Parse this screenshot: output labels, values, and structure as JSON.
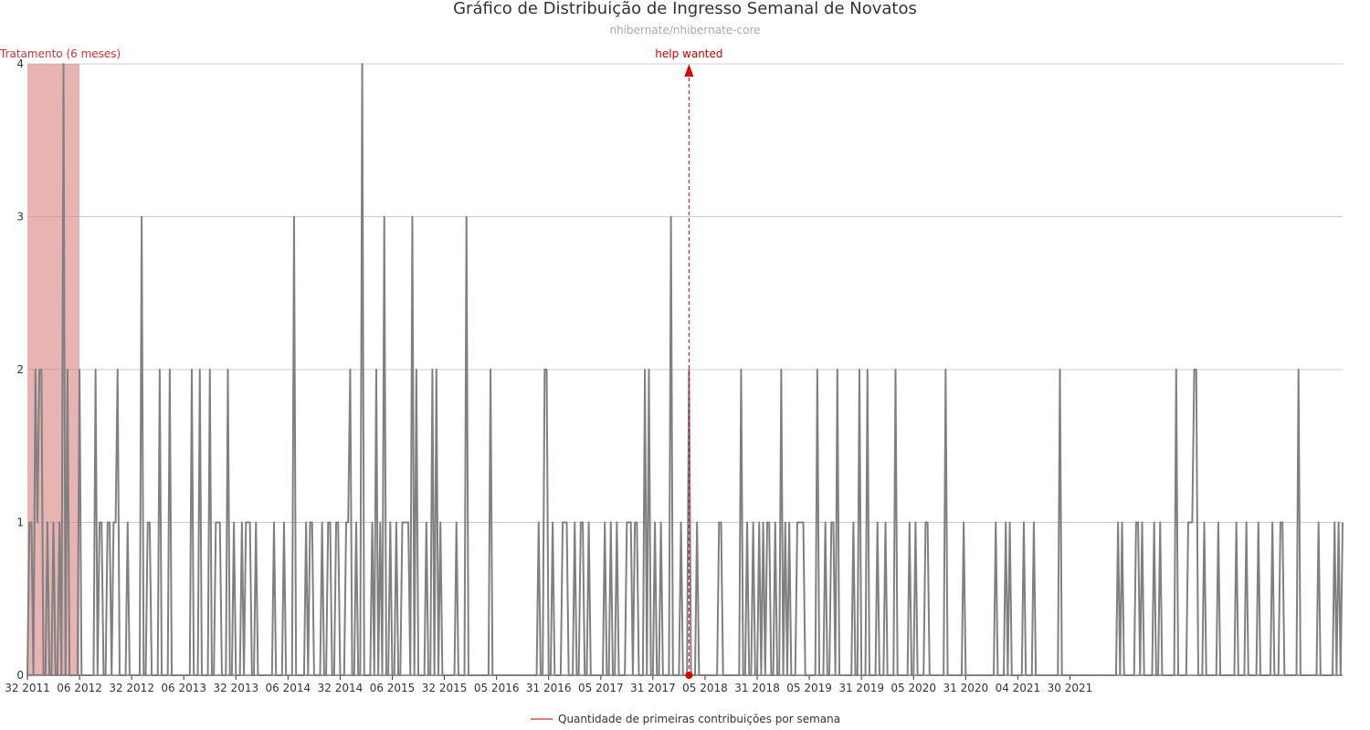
{
  "chart_data": {
    "type": "line",
    "title": "Gráfico de Distribuição de Ingresso Semanal de Novatos",
    "subtitle": "nhibernate/nhibernate-core",
    "xlabel": "",
    "ylabel": "",
    "ylim": [
      0,
      4
    ],
    "y_ticks": [
      "0",
      "1",
      "2",
      "3",
      "4"
    ],
    "x_ticks": [
      "32 2011",
      "06 2012",
      "32 2012",
      "06 2013",
      "32 2013",
      "06 2014",
      "32 2014",
      "06 2015",
      "32 2015",
      "05 2016",
      "31 2016",
      "05 2017",
      "31 2017",
      "05 2018",
      "31 2018",
      "05 2019",
      "31 2019",
      "05 2020",
      "31 2020",
      "04 2021",
      "30 2021"
    ],
    "x_start_week": 32,
    "x_start_year": 2011,
    "grid": "horizontal",
    "legend_position": "bottom",
    "colors": {
      "line": "#808080",
      "band": "#d98080",
      "annotation": "#dd0000",
      "grid": "#cccccc"
    },
    "annotations": [
      {
        "label": "Tratamento (6 meses)",
        "type": "band",
        "x_from": 0,
        "x_to": 26
      },
      {
        "label": "help wanted",
        "type": "marker",
        "x": 330
      }
    ],
    "series": [
      {
        "name": "Quantidade de primeiras contribuições por semana",
        "values": [
          0,
          1,
          1,
          0,
          2,
          1,
          2,
          2,
          0,
          0,
          1,
          0,
          0,
          1,
          0,
          0,
          1,
          0,
          4,
          0,
          2,
          0,
          0,
          0,
          0,
          0,
          2,
          0,
          0,
          0,
          0,
          0,
          0,
          0,
          2,
          0,
          1,
          1,
          0,
          0,
          1,
          1,
          0,
          1,
          1,
          2,
          0,
          0,
          0,
          0,
          1,
          0,
          0,
          0,
          0,
          0,
          0,
          3,
          0,
          0,
          1,
          1,
          0,
          0,
          0,
          0,
          2,
          0,
          0,
          0,
          0,
          2,
          0,
          0,
          0,
          0,
          0,
          0,
          0,
          0,
          0,
          0,
          2,
          0,
          0,
          0,
          2,
          0,
          0,
          0,
          0,
          2,
          0,
          0,
          1,
          1,
          1,
          0,
          0,
          0,
          2,
          0,
          0,
          1,
          0,
          0,
          0,
          1,
          0,
          1,
          1,
          1,
          0,
          0,
          1,
          0,
          0,
          0,
          0,
          0,
          0,
          0,
          0,
          1,
          0,
          0,
          0,
          0,
          1,
          0,
          0,
          0,
          0,
          3,
          0,
          0,
          0,
          0,
          0,
          1,
          0,
          1,
          1,
          0,
          0,
          0,
          0,
          1,
          0,
          0,
          1,
          1,
          0,
          0,
          1,
          1,
          0,
          0,
          0,
          1,
          1,
          2,
          0,
          0,
          1,
          0,
          0,
          4,
          0,
          0,
          0,
          0,
          1,
          0,
          2,
          0,
          1,
          0,
          3,
          0,
          0,
          1,
          0,
          0,
          1,
          0,
          0,
          1,
          1,
          1,
          1,
          0,
          3,
          0,
          2,
          0,
          0,
          0,
          0,
          1,
          0,
          0,
          2,
          0,
          2,
          0,
          1,
          0,
          0,
          0,
          0,
          0,
          0,
          0,
          1,
          0,
          0,
          0,
          0,
          3,
          0,
          0,
          0,
          0,
          0,
          0,
          0,
          0,
          0,
          0,
          0,
          2,
          0,
          0,
          0,
          0,
          0,
          0,
          0,
          0,
          0,
          0,
          0,
          0,
          0,
          0,
          0,
          0,
          0,
          0,
          0,
          0,
          0,
          0,
          0,
          1,
          0,
          0,
          2,
          2,
          0,
          0,
          1,
          0,
          0,
          0,
          0,
          1,
          1,
          1,
          0,
          0,
          0,
          1,
          0,
          0,
          1,
          1,
          0,
          0,
          1,
          0,
          0,
          0,
          0,
          0,
          0,
          0,
          1,
          0,
          0,
          1,
          0,
          0,
          1,
          0,
          0,
          0,
          0,
          1,
          1,
          1,
          0,
          1,
          1,
          0,
          0,
          0,
          2,
          0,
          2,
          0,
          0,
          1,
          0,
          0,
          1,
          0,
          0,
          0,
          0,
          3,
          0,
          0,
          0,
          0,
          1,
          0,
          0,
          0,
          2,
          0,
          0,
          0,
          1,
          0,
          0,
          0,
          0,
          0,
          0,
          0,
          0,
          0,
          0,
          1,
          1,
          0,
          0,
          0,
          0,
          0,
          0,
          0,
          0,
          0,
          2,
          0,
          0,
          1,
          0,
          0,
          1,
          0,
          0,
          1,
          0,
          1,
          0,
          1,
          1,
          0,
          0,
          1,
          0,
          0,
          2,
          0,
          1,
          0,
          1,
          0,
          0,
          0,
          1,
          1,
          1,
          1,
          0,
          0,
          0,
          0,
          0,
          0,
          2,
          0,
          0,
          0,
          1,
          0,
          0,
          1,
          1,
          0,
          2,
          0,
          0,
          0,
          0,
          0,
          0,
          0,
          1,
          0,
          0,
          2,
          0,
          0,
          0,
          2,
          0,
          0,
          0,
          0,
          1,
          0,
          0,
          0,
          1,
          0,
          0,
          0,
          0,
          2,
          0,
          0,
          0,
          0,
          0,
          0,
          1,
          0,
          0,
          1,
          0,
          0,
          0,
          0,
          1,
          1,
          0,
          0,
          0,
          0,
          0,
          0,
          0,
          0,
          2,
          0,
          0,
          0,
          0,
          0,
          0,
          0,
          0,
          1,
          0,
          0,
          0,
          0,
          0,
          0,
          0,
          0,
          0,
          0,
          0,
          0,
          0,
          0,
          0,
          1,
          0,
          0,
          0,
          0,
          1,
          0,
          1,
          0,
          0,
          0,
          0,
          0,
          0,
          1,
          0,
          0,
          0,
          0,
          1,
          0,
          0,
          0,
          0,
          0,
          0,
          0,
          0,
          0,
          0,
          0,
          0,
          2,
          0,
          0,
          0,
          0,
          0,
          0,
          0,
          0,
          0,
          0,
          0,
          0,
          0,
          0,
          0,
          0,
          0,
          0,
          0,
          0,
          0,
          0,
          0,
          0,
          0,
          0,
          0,
          0,
          1,
          0,
          1,
          0,
          0,
          0,
          0,
          0,
          0,
          1,
          1,
          0,
          1,
          0,
          0,
          0,
          0,
          0,
          1,
          0,
          0,
          1,
          0,
          0,
          0,
          0,
          0,
          0,
          0,
          2,
          0,
          0,
          0,
          0,
          0,
          1,
          1,
          1,
          2,
          2,
          0,
          0,
          0,
          1,
          0,
          0,
          0,
          0,
          0,
          0,
          1,
          0,
          0,
          0,
          0,
          0,
          0,
          0,
          0,
          1,
          0,
          0,
          0,
          0,
          1,
          0,
          0,
          0,
          0,
          0,
          1,
          0,
          0,
          0,
          0,
          0,
          0,
          1,
          0,
          0,
          0,
          1,
          1,
          0,
          0,
          0,
          0,
          0,
          0,
          0,
          2,
          0,
          0,
          0,
          0,
          0,
          0,
          0,
          0,
          0,
          1,
          0,
          0,
          0,
          0,
          0,
          0,
          0,
          1,
          0,
          1,
          0,
          1
        ]
      }
    ]
  }
}
